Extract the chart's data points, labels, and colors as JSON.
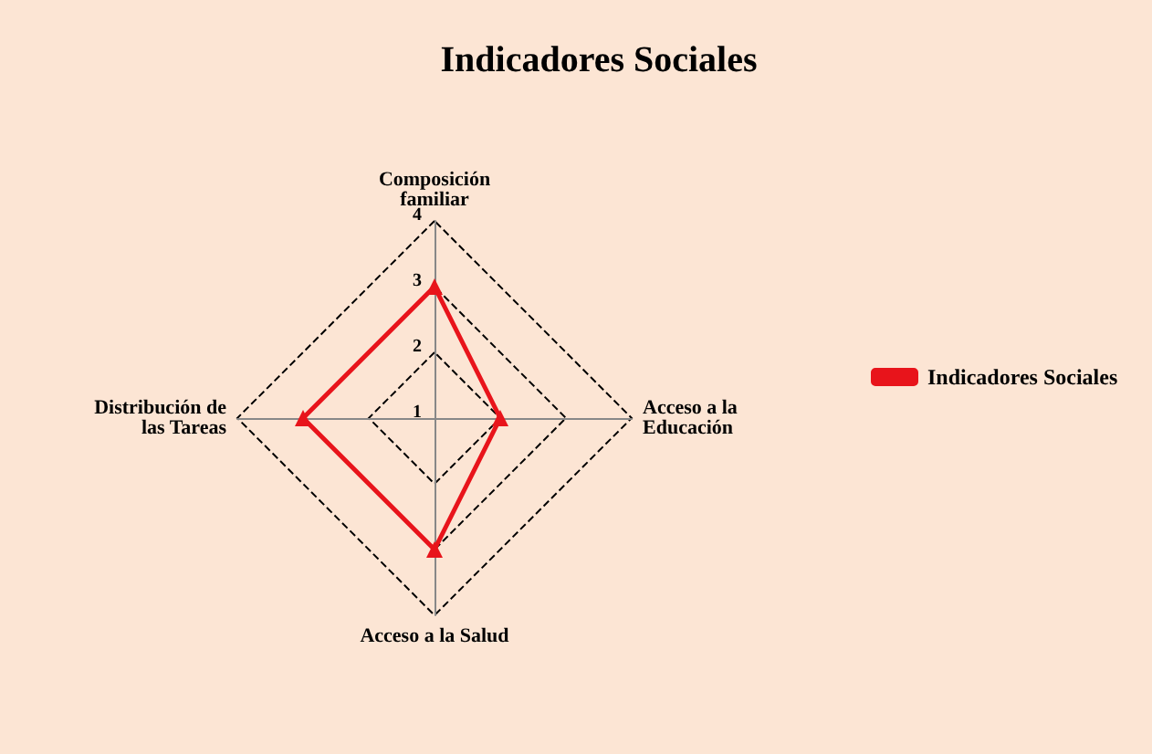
{
  "chart_data": {
    "type": "radar",
    "title": "Indicadores Sociales",
    "categories": [
      "Composición\nfamiliar",
      "Acceso a la\nEducación",
      "Acceso a la Salud",
      "Distribución de\nlas Tareas"
    ],
    "series": [
      {
        "name": "Indicadores Sociales",
        "color": "#e8141b",
        "values": [
          3,
          2,
          3,
          3
        ]
      }
    ],
    "ylim": [
      1,
      4
    ],
    "yticks": [
      1,
      2,
      3,
      4
    ],
    "grid": true,
    "legend": "right",
    "marker": "triangle",
    "line_style": "solid"
  }
}
